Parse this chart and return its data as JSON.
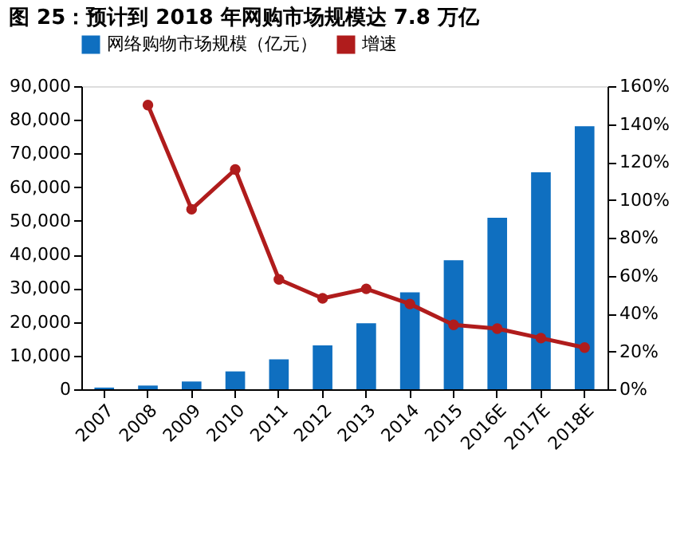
{
  "chart_data": {
    "type": "bar",
    "title": "图 25：预计到 2018 年网购市场规模达 7.8 万亿",
    "categories": [
      "2007",
      "2008",
      "2009",
      "2010",
      "2011",
      "2012",
      "2013",
      "2014",
      "2015",
      "2016E",
      "2017E",
      "2018E"
    ],
    "series": [
      {
        "name": "网络购物市场规模（亿元）",
        "color": "#0f6fc0",
        "values": [
          500,
          1100,
          2300,
          5300,
          8900,
          13000,
          19600,
          28800,
          38300,
          50900,
          64400,
          78100
        ]
      },
      {
        "name": "增速",
        "type": "line",
        "axis": "y2",
        "color": "#b01c1c",
        "marker": "circle",
        "values": [
          null,
          150,
          95,
          116,
          58,
          48,
          53,
          45,
          34,
          32,
          27,
          22
        ]
      }
    ],
    "ylim": [
      0,
      90000
    ],
    "yticks": [
      {
        "value": 0,
        "label": "0"
      },
      {
        "value": 10000,
        "label": "10,000"
      },
      {
        "value": 20000,
        "label": "20,000"
      },
      {
        "value": 30000,
        "label": "30,000"
      },
      {
        "value": 40000,
        "label": "40,000"
      },
      {
        "value": 50000,
        "label": "50,000"
      },
      {
        "value": 60000,
        "label": "60,000"
      },
      {
        "value": 70000,
        "label": "70,000"
      },
      {
        "value": 80000,
        "label": "80,000"
      },
      {
        "value": 90000,
        "label": "90,000"
      }
    ],
    "y2lim": [
      0,
      160
    ],
    "y2ticks": [
      {
        "value": 0,
        "label": "0%"
      },
      {
        "value": 20,
        "label": "20%"
      },
      {
        "value": 40,
        "label": "40%"
      },
      {
        "value": 60,
        "label": "60%"
      },
      {
        "value": 80,
        "label": "80%"
      },
      {
        "value": 100,
        "label": "100%"
      },
      {
        "value": 120,
        "label": "120%"
      },
      {
        "value": 140,
        "label": "140%"
      },
      {
        "value": 160,
        "label": "160%"
      }
    ],
    "legend": "top",
    "grid": false
  }
}
